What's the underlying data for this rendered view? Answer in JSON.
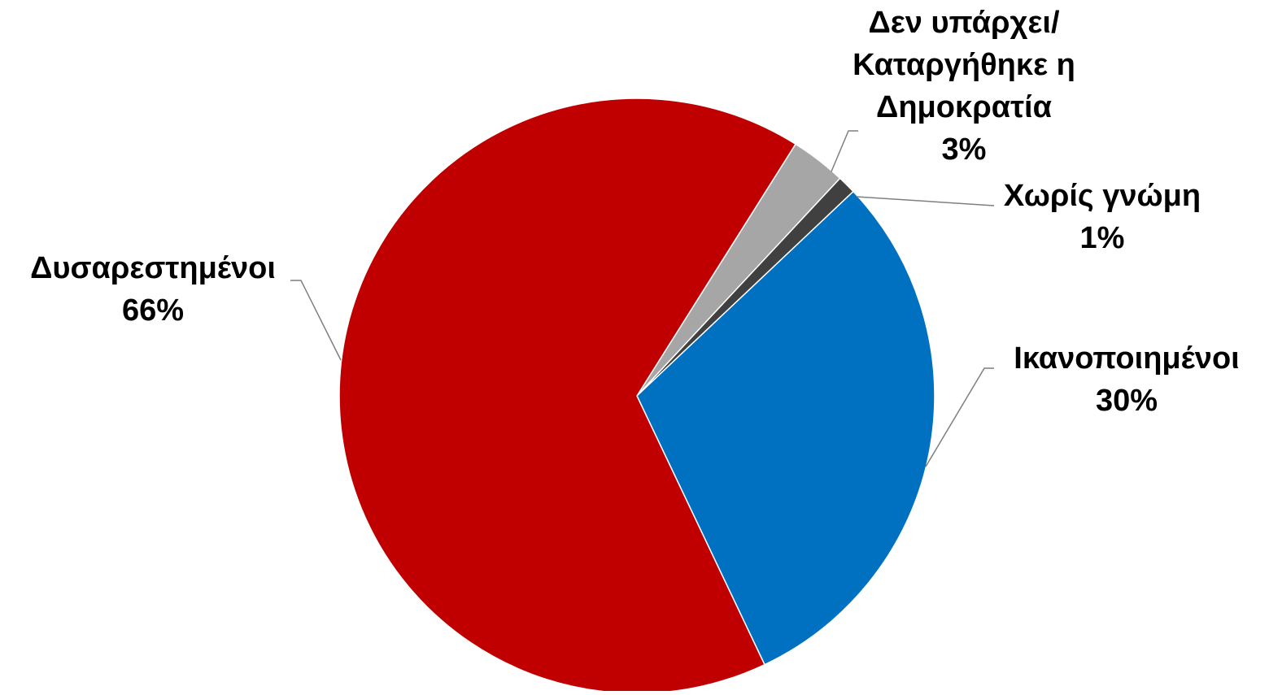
{
  "chart_data": {
    "type": "pie",
    "title": "",
    "start_angle_deg": 32.2,
    "direction": "clockwise",
    "label_style": "outside labels with leader lines",
    "slices": [
      {
        "label_lines": [
          "Δεν υπάρχει/",
          "Καταργήθηκε η",
          "Δημοκρατία"
        ],
        "value": 3,
        "value_label": "3%",
        "color": "#A6A6A6"
      },
      {
        "label_lines": [
          "Χωρίς γνώμη"
        ],
        "value": 1,
        "value_label": "1%",
        "color": "#404040"
      },
      {
        "label_lines": [
          "Ικανοποιημένοι"
        ],
        "value": 30,
        "value_label": "30%",
        "color": "#0070C0"
      },
      {
        "label_lines": [
          "Δυσαρεστημένοι"
        ],
        "value": 66,
        "value_label": "66%",
        "color": "#C00000"
      }
    ]
  }
}
